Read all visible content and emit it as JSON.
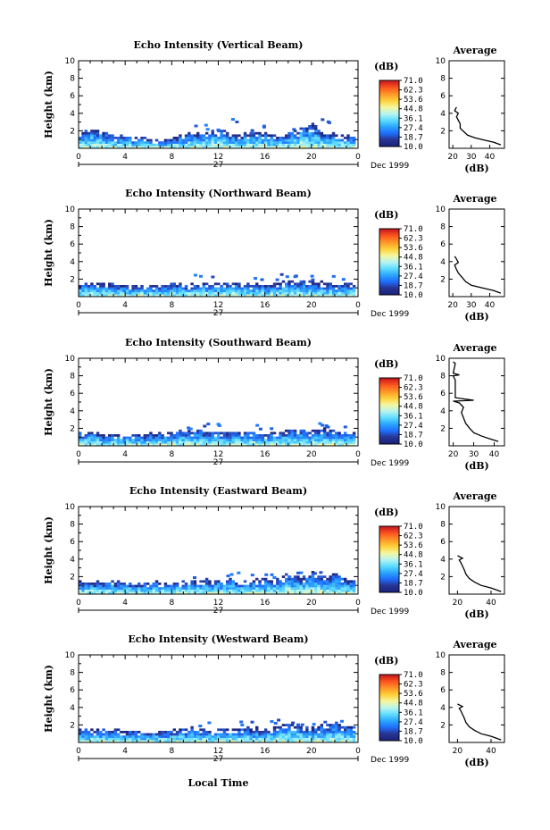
{
  "figure": {
    "colorbar_unit": "(dB)",
    "colorbar_ticks": [
      "71.0",
      "62.3",
      "53.6",
      "44.8",
      "36.1",
      "27.4",
      "18.7",
      "10.0"
    ],
    "colorbar_range": [
      10.0,
      71.0
    ],
    "colormap": [
      "#1a237e",
      "#283593",
      "#1e6fff",
      "#2aa6ff",
      "#5fdcff",
      "#b6f5f0",
      "#f5f7a0",
      "#ffd23c",
      "#ff9a28",
      "#ff5a1e",
      "#d01e1e"
    ],
    "date_label": "Dec 1999",
    "day_label": "27",
    "xlabel_bottom": "Local Time",
    "height_label": "Height (km)",
    "avg_title": "Average",
    "avg_xlabel": "(dB)"
  },
  "chart_data": [
    {
      "type": "heatmap",
      "title": "Echo Intensity (Vertical Beam)",
      "ylabel": "Height (km)",
      "xlim": [
        0,
        24
      ],
      "ylim": [
        0,
        10
      ],
      "xticks": [
        "0",
        "4",
        "8",
        "12",
        "16",
        "20",
        "0"
      ],
      "yticks": [
        "2",
        "4",
        "6",
        "8",
        "10"
      ],
      "echo_top_km": [
        2.0,
        2.3,
        2.0,
        1.6,
        1.5,
        1.4,
        1.3,
        1.2,
        1.2,
        1.8,
        2.1,
        2.0,
        2.2,
        1.9,
        1.7,
        1.9,
        1.8,
        1.6,
        2.0,
        2.6,
        2.9,
        1.9,
        1.8,
        1.6,
        1.4
      ],
      "average": {
        "title": "Average",
        "xlabel": "(dB)",
        "xticks": [
          "20",
          "30",
          "40"
        ],
        "xlim": [
          18,
          48
        ],
        "yticks": [
          "2",
          "4",
          "6",
          "8",
          "10"
        ],
        "profile": [
          [
            46,
            0.4
          ],
          [
            42,
            0.7
          ],
          [
            38,
            0.9
          ],
          [
            32,
            1.2
          ],
          [
            28,
            1.5
          ],
          [
            26,
            1.9
          ],
          [
            24,
            2.3
          ],
          [
            24,
            2.8
          ],
          [
            23,
            3.2
          ],
          [
            22,
            3.6
          ],
          [
            23,
            4.0
          ],
          [
            21,
            4.3
          ],
          [
            22,
            4.7
          ]
        ]
      }
    },
    {
      "type": "heatmap",
      "title": "Echo Intensity (Northward Beam)",
      "ylabel": "Height (km)",
      "xlim": [
        0,
        24
      ],
      "ylim": [
        0,
        10
      ],
      "xticks": [
        "0",
        "4",
        "8",
        "12",
        "16",
        "20",
        "0"
      ],
      "yticks": [
        "2",
        "4",
        "6",
        "8",
        "10"
      ],
      "echo_top_km": [
        1.5,
        1.6,
        1.6,
        1.5,
        1.4,
        1.4,
        1.4,
        1.5,
        1.5,
        1.5,
        1.6,
        1.6,
        1.6,
        1.7,
        1.6,
        1.6,
        1.5,
        1.7,
        2.0,
        1.9,
        1.8,
        1.7,
        1.6,
        1.7,
        1.6
      ],
      "average": {
        "title": "Average",
        "xlabel": "(dB)",
        "xticks": [
          "20",
          "30",
          "40"
        ],
        "xlim": [
          18,
          48
        ],
        "yticks": [
          "2",
          "4",
          "6",
          "8",
          "10"
        ],
        "profile": [
          [
            46,
            0.4
          ],
          [
            42,
            0.7
          ],
          [
            36,
            1.0
          ],
          [
            30,
            1.3
          ],
          [
            27,
            1.7
          ],
          [
            25,
            2.2
          ],
          [
            23,
            2.7
          ],
          [
            22,
            3.1
          ],
          [
            21,
            3.6
          ],
          [
            23,
            3.9
          ],
          [
            22,
            4.3
          ],
          [
            21,
            4.6
          ]
        ]
      }
    },
    {
      "type": "heatmap",
      "title": "Echo Intensity (Southward Beam)",
      "ylabel": "Height (km)",
      "xlim": [
        0,
        24
      ],
      "ylim": [
        0,
        10
      ],
      "xticks": [
        "0",
        "4",
        "8",
        "12",
        "16",
        "20",
        "0"
      ],
      "yticks": [
        "2",
        "4",
        "6",
        "8",
        "10"
      ],
      "echo_top_km": [
        1.6,
        1.6,
        1.5,
        1.5,
        1.4,
        1.4,
        1.5,
        1.5,
        1.7,
        2.0,
        1.9,
        1.8,
        1.8,
        1.7,
        1.7,
        1.7,
        1.6,
        1.8,
        2.0,
        1.9,
        1.8,
        2.2,
        1.8,
        1.6,
        1.5
      ],
      "average": {
        "title": "Average",
        "xlabel": "(dB)",
        "xticks": [
          "20",
          "30",
          "40"
        ],
        "xlim": [
          18,
          45
        ],
        "yticks": [
          "2",
          "4",
          "6",
          "8",
          "10"
        ],
        "profile": [
          [
            42,
            0.5
          ],
          [
            38,
            0.8
          ],
          [
            34,
            1.1
          ],
          [
            30,
            1.5
          ],
          [
            28,
            2.0
          ],
          [
            26,
            2.6
          ],
          [
            25,
            3.2
          ],
          [
            24,
            3.8
          ],
          [
            25,
            4.4
          ],
          [
            23,
            4.9
          ],
          [
            20,
            5.1
          ],
          [
            30,
            5.2
          ],
          [
            21,
            5.5
          ],
          [
            21,
            7.5
          ],
          [
            20,
            8.0
          ],
          [
            23,
            8.1
          ],
          [
            20,
            8.3
          ],
          [
            21,
            9.4
          ],
          [
            20,
            9.6
          ]
        ]
      }
    },
    {
      "type": "heatmap",
      "title": "Echo Intensity (Eastward Beam)",
      "ylabel": "Height (km)",
      "xlim": [
        0,
        24
      ],
      "ylim": [
        0,
        10
      ],
      "xticks": [
        "0",
        "4",
        "8",
        "12",
        "16",
        "20",
        "0"
      ],
      "yticks": [
        "2",
        "4",
        "6",
        "8",
        "10"
      ],
      "echo_top_km": [
        1.5,
        1.6,
        1.5,
        1.5,
        1.4,
        1.4,
        1.4,
        1.5,
        1.5,
        1.6,
        1.6,
        1.7,
        1.7,
        1.8,
        1.6,
        1.7,
        1.8,
        1.9,
        2.4,
        2.2,
        2.5,
        2.1,
        2.3,
        1.9,
        1.7
      ],
      "average": {
        "title": "Average",
        "xlabel": "(dB)",
        "xticks": [
          "20",
          "40"
        ],
        "xlim": [
          15,
          48
        ],
        "yticks": [
          "2",
          "4",
          "6",
          "8",
          "10"
        ],
        "profile": [
          [
            46,
            0.3
          ],
          [
            40,
            0.7
          ],
          [
            34,
            1.0
          ],
          [
            30,
            1.4
          ],
          [
            27,
            1.8
          ],
          [
            25,
            2.3
          ],
          [
            24,
            2.8
          ],
          [
            23,
            3.2
          ],
          [
            22,
            3.6
          ],
          [
            21,
            3.9
          ],
          [
            23,
            4.1
          ],
          [
            20,
            4.4
          ]
        ]
      }
    },
    {
      "type": "heatmap",
      "title": "Echo Intensity (Westward Beam)",
      "ylabel": "Height (km)",
      "xlim": [
        0,
        24
      ],
      "ylim": [
        0,
        10
      ],
      "xticks": [
        "0",
        "4",
        "8",
        "12",
        "16",
        "20",
        "0"
      ],
      "yticks": [
        "2",
        "4",
        "6",
        "8",
        "10"
      ],
      "echo_top_km": [
        1.5,
        1.6,
        1.5,
        1.5,
        1.5,
        1.4,
        1.4,
        1.5,
        1.6,
        1.7,
        1.7,
        1.6,
        1.7,
        1.8,
        1.7,
        1.7,
        1.7,
        1.9,
        2.3,
        2.2,
        1.9,
        2.1,
        2.4,
        2.0,
        1.7
      ],
      "average": {
        "title": "Average",
        "xlabel": "(dB)",
        "xticks": [
          "20",
          "40"
        ],
        "xlim": [
          15,
          48
        ],
        "yticks": [
          "2",
          "4",
          "6",
          "8",
          "10"
        ],
        "profile": [
          [
            46,
            0.3
          ],
          [
            40,
            0.7
          ],
          [
            34,
            1.0
          ],
          [
            30,
            1.4
          ],
          [
            27,
            1.8
          ],
          [
            25,
            2.3
          ],
          [
            24,
            2.8
          ],
          [
            23,
            3.2
          ],
          [
            22,
            3.6
          ],
          [
            21,
            3.9
          ],
          [
            23,
            4.1
          ],
          [
            20,
            4.4
          ]
        ]
      }
    }
  ]
}
